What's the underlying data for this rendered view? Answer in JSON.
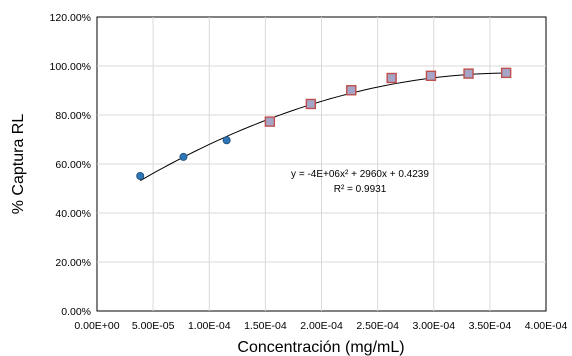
{
  "chart_data": {
    "type": "scatter",
    "title": "",
    "xlabel": "Concentración (mg/mL)",
    "ylabel": "% Captura RL",
    "xlim": [
      0,
      0.0004
    ],
    "ylim": [
      0,
      1.2
    ],
    "x_ticks": [
      0,
      5e-05,
      0.0001,
      0.00015,
      0.0002,
      0.00025,
      0.0003,
      0.00035,
      0.0004
    ],
    "x_tick_labels": [
      "0.00E+00",
      "5.00E-05",
      "1.00E-04",
      "1.50E-04",
      "2.00E-04",
      "2.50E-04",
      "3.00E-04",
      "3.50E-04",
      "4.00E-04"
    ],
    "y_ticks": [
      0,
      0.2,
      0.4,
      0.6,
      0.8,
      1.0,
      1.2
    ],
    "y_tick_labels": [
      "0.00%",
      "20.00%",
      "40.00%",
      "60.00%",
      "80.00%",
      "100.00%",
      "120.00%"
    ],
    "grid": true,
    "legend": "none",
    "series": [
      {
        "marker": "circle",
        "color": "#2E75B6",
        "x": [
          3.85e-05,
          7.7e-05,
          0.0001155
        ],
        "y": [
          0.551,
          0.629,
          0.697
        ]
      },
      {
        "marker": "square",
        "color": "#A5A5C8",
        "edge_color": "#C0504D",
        "x": [
          0.000154,
          0.0001905,
          0.0002265,
          0.0002625,
          0.0002975,
          0.000331,
          0.0003645
        ],
        "y": [
          0.773,
          0.845,
          0.901,
          0.951,
          0.96,
          0.969,
          0.972
        ]
      }
    ],
    "trendline": {
      "type": "polynomial",
      "coefficients": [
        -4000000,
        2960,
        0.4239
      ],
      "x_range": [
        3.85e-05,
        0.0003645
      ],
      "color": "#000000"
    },
    "annotations": [
      {
        "text": "y = -4E+06x² + 2960x + 0.4239"
      },
      {
        "text": "R² = 0.9931"
      }
    ]
  }
}
